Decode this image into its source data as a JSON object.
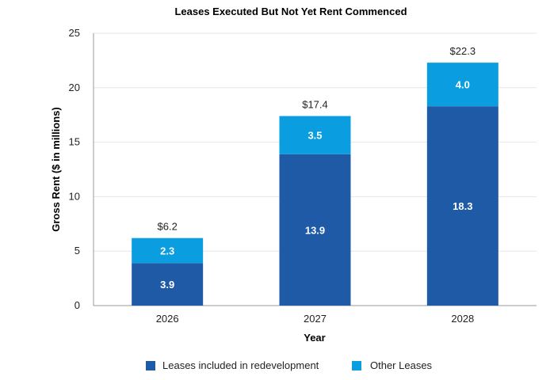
{
  "chart_data": {
    "type": "bar",
    "stacked": true,
    "title": "Leases Executed But Not Yet Rent Commenced",
    "xlabel": "Year",
    "ylabel": "Gross Rent ($ in millions)",
    "categories": [
      "2026",
      "2027",
      "2028"
    ],
    "series": [
      {
        "name": "Leases included in redevelopment",
        "color": "#1f5aa6",
        "values": [
          3.9,
          13.9,
          18.3
        ],
        "labels": [
          "3.9",
          "13.9",
          "18.3"
        ]
      },
      {
        "name": "Other Leases",
        "color": "#0a9ee0",
        "values": [
          2.3,
          3.5,
          4.0
        ],
        "labels": [
          "2.3",
          "3.5",
          "4.0"
        ]
      }
    ],
    "totals": [
      6.2,
      17.4,
      22.3
    ],
    "total_labels": [
      "$6.2",
      "$17.4",
      "$22.3"
    ],
    "ylim": [
      0,
      25
    ],
    "yticks": [
      0,
      5,
      10,
      15,
      20,
      25
    ],
    "ytick_labels": [
      "0",
      "5",
      "10",
      "15",
      "20",
      "25"
    ],
    "grid": true,
    "legend_position": "bottom-center"
  }
}
